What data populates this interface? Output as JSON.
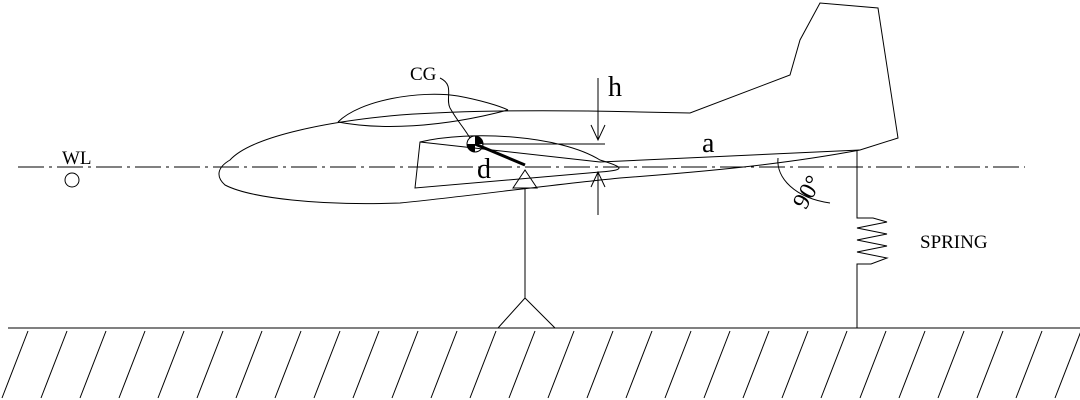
{
  "labels": {
    "cg": "CG",
    "wl": "WL",
    "h": "h",
    "a": "a",
    "d": "d",
    "angle": "90°",
    "spring": "SPRING"
  },
  "colors": {
    "line": "#000000",
    "background": "#ffffff"
  }
}
